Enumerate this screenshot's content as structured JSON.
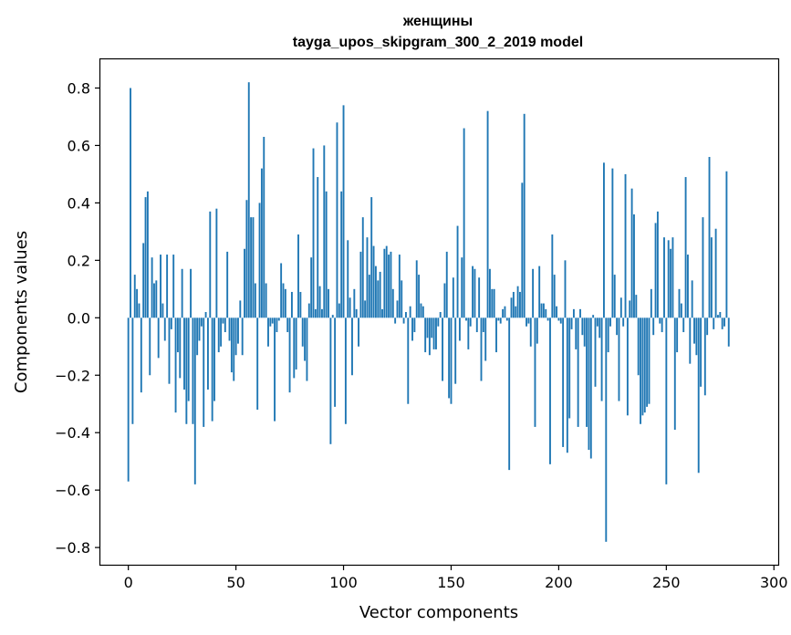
{
  "chart_data": {
    "type": "bar",
    "title": "женщины",
    "subtitle": "tayga_upos_skipgram_300_2_2019 model",
    "xlabel": "Vector components",
    "ylabel": "Components values",
    "xlim": [
      -13,
      302
    ],
    "ylim": [
      -0.86,
      0.9
    ],
    "xticks": [
      0,
      50,
      100,
      150,
      200,
      250,
      300
    ],
    "xtick_labels": [
      "0",
      "50",
      "100",
      "150",
      "200",
      "250",
      "300"
    ],
    "yticks": [
      -0.8,
      -0.6,
      -0.4,
      -0.2,
      0.0,
      0.2,
      0.4,
      0.6,
      0.8
    ],
    "ytick_labels": [
      "−0.8",
      "−0.6",
      "−0.4",
      "−0.2",
      "0.0",
      "0.2",
      "0.4",
      "0.6",
      "0.8"
    ],
    "grid": false,
    "bar_color": "#1f77b4",
    "values": [
      -0.57,
      0.8,
      -0.37,
      0.15,
      0.1,
      0.05,
      -0.26,
      0.26,
      0.42,
      0.44,
      -0.2,
      0.21,
      0.12,
      0.13,
      -0.14,
      0.22,
      0.05,
      -0.08,
      0.22,
      -0.23,
      -0.04,
      0.22,
      -0.33,
      -0.12,
      -0.21,
      0.17,
      -0.25,
      -0.37,
      -0.29,
      0.17,
      -0.37,
      -0.58,
      -0.13,
      -0.08,
      -0.03,
      -0.38,
      0.02,
      -0.25,
      0.37,
      -0.36,
      -0.29,
      0.38,
      -0.12,
      -0.1,
      -0.02,
      -0.05,
      0.23,
      -0.08,
      -0.19,
      -0.22,
      -0.13,
      -0.09,
      0.06,
      -0.13,
      0.24,
      0.41,
      0.82,
      0.35,
      0.35,
      0.12,
      -0.32,
      0.4,
      0.52,
      0.63,
      0.12,
      -0.1,
      -0.03,
      -0.02,
      -0.36,
      -0.05,
      -0.01,
      0.19,
      0.12,
      0.1,
      -0.05,
      -0.26,
      0.09,
      -0.21,
      -0.18,
      0.29,
      0.09,
      -0.1,
      -0.15,
      -0.22,
      0.05,
      0.21,
      0.59,
      0.03,
      0.49,
      0.11,
      0.03,
      0.6,
      0.44,
      0.1,
      -0.44,
      0.01,
      -0.31,
      0.68,
      0.05,
      0.44,
      0.74,
      -0.37,
      0.27,
      0.07,
      -0.2,
      0.1,
      0.03,
      -0.1,
      0.23,
      0.35,
      0.06,
      0.28,
      0.15,
      0.42,
      0.25,
      0.18,
      0.13,
      0.16,
      0.03,
      0.24,
      0.25,
      0.22,
      0.23,
      0.1,
      -0.02,
      0.06,
      0.22,
      0.13,
      -0.02,
      0.02,
      -0.3,
      0.04,
      -0.08,
      -0.05,
      0.2,
      0.15,
      0.05,
      0.04,
      -0.12,
      -0.07,
      -0.13,
      -0.07,
      -0.11,
      -0.11,
      -0.03,
      0.02,
      -0.22,
      0.12,
      0.23,
      -0.28,
      -0.3,
      0.14,
      -0.23,
      0.32,
      -0.08,
      0.21,
      0.66,
      -0.01,
      -0.11,
      -0.03,
      0.18,
      0.17,
      -0.05,
      0.14,
      -0.22,
      -0.05,
      -0.15,
      0.72,
      0.17,
      0.1,
      0.1,
      -0.12,
      -0.01,
      -0.02,
      0.03,
      0.04,
      -0.01,
      -0.53,
      0.07,
      0.09,
      0.04,
      0.11,
      0.09,
      0.47,
      0.71,
      -0.03,
      -0.02,
      -0.1,
      0.17,
      -0.38,
      -0.09,
      0.18,
      0.05,
      0.05,
      0.03,
      -0.01,
      -0.51,
      0.29,
      0.15,
      0.04,
      -0.01,
      -0.02,
      -0.45,
      0.2,
      -0.47,
      -0.35,
      -0.04,
      0.03,
      -0.11,
      -0.38,
      0.03,
      -0.06,
      -0.1,
      -0.38,
      -0.46,
      -0.49,
      0.01,
      -0.24,
      -0.03,
      -0.07,
      -0.29,
      0.54,
      -0.78,
      -0.12,
      -0.03,
      0.52,
      0.15,
      -0.06,
      -0.29,
      0.07,
      -0.03,
      0.5,
      -0.34,
      0.06,
      0.45,
      0.36,
      0.08,
      -0.2,
      -0.37,
      -0.34,
      -0.33,
      -0.31,
      -0.3,
      0.1,
      -0.06,
      0.33,
      0.37,
      -0.02,
      -0.05,
      0.28,
      -0.58,
      0.27,
      0.24,
      0.28,
      -0.39,
      -0.12,
      0.1,
      0.05,
      -0.05,
      0.49,
      0.22,
      -0.16,
      0.13,
      -0.09,
      -0.13,
      -0.54,
      -0.24,
      0.35,
      -0.27,
      -0.06,
      0.56,
      0.28,
      -0.04,
      0.31,
      0.01,
      0.02,
      -0.04,
      -0.03,
      0.51,
      -0.1
    ]
  }
}
